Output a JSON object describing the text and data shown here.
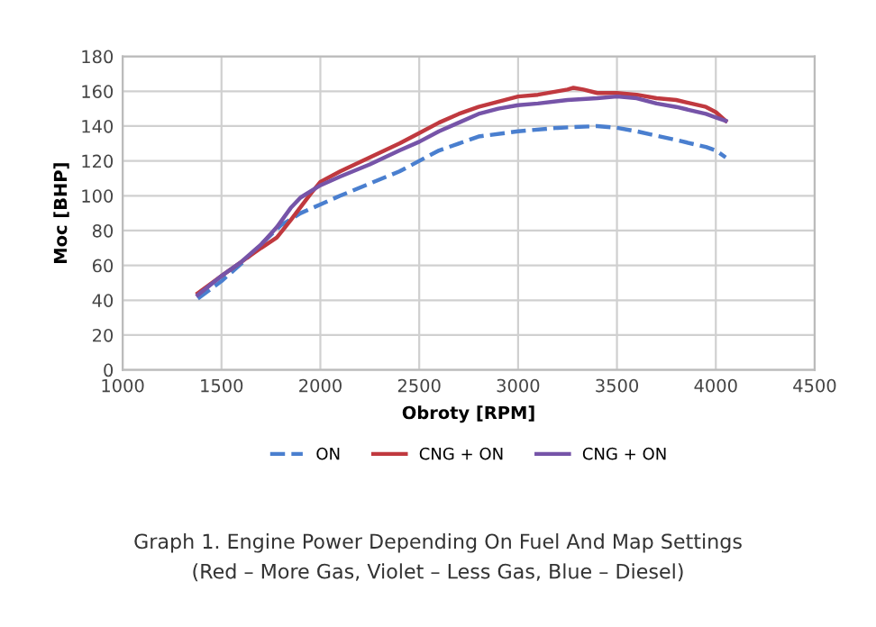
{
  "chart_data": {
    "type": "line",
    "xlabel": "Obroty [RPM]",
    "ylabel": "Moc [BHP]",
    "xlim": [
      1000,
      4500
    ],
    "xticks": [
      1000,
      1500,
      2000,
      2500,
      3000,
      3500,
      4000,
      4500
    ],
    "ylim": [
      0,
      180
    ],
    "yticks": [
      0,
      20,
      40,
      60,
      80,
      100,
      120,
      140,
      160,
      180
    ],
    "grid": true,
    "legend": "bottom",
    "marker": "none",
    "series": [
      {
        "name": "ON",
        "color": "#4a7fcf",
        "line_style": "dashed",
        "x": [
          1380,
          1500,
          1600,
          1700,
          1800,
          1900,
          2000,
          2100,
          2250,
          2400,
          2500,
          2600,
          2700,
          2800,
          3000,
          3200,
          3400,
          3500,
          3600,
          3800,
          3950,
          4000,
          4050
        ],
        "values": [
          41,
          51,
          61,
          72,
          83,
          90,
          95,
          100,
          107,
          114,
          120,
          126,
          130,
          134,
          137,
          139,
          140,
          139,
          137,
          132,
          128,
          126,
          122
        ]
      },
      {
        "name": "CNG + ON",
        "color": "#c0393f",
        "line_style": "solid",
        "x": [
          1380,
          1500,
          1600,
          1700,
          1780,
          1850,
          1950,
          2000,
          2100,
          2250,
          2400,
          2500,
          2600,
          2700,
          2800,
          2900,
          3000,
          3100,
          3250,
          3280,
          3330,
          3400,
          3500,
          3600,
          3700,
          3800,
          3950,
          4000,
          4050
        ],
        "values": [
          44,
          54,
          62,
          70,
          76,
          86,
          101,
          108,
          114,
          122,
          130,
          136,
          142,
          147,
          151,
          154,
          157,
          158,
          161,
          162,
          161,
          159,
          159,
          158,
          156,
          155,
          151,
          148,
          143
        ]
      },
      {
        "name": "CNG + ON",
        "color": "#7654a8",
        "line_style": "solid",
        "x": [
          1380,
          1500,
          1600,
          1700,
          1780,
          1850,
          1900,
          2000,
          2100,
          2250,
          2400,
          2500,
          2600,
          2700,
          2800,
          2900,
          3000,
          3100,
          3250,
          3400,
          3500,
          3600,
          3700,
          3800,
          3950,
          4000,
          4050
        ],
        "values": [
          43,
          54,
          62,
          72,
          82,
          93,
          99,
          106,
          111,
          118,
          126,
          131,
          137,
          142,
          147,
          150,
          152,
          153,
          155,
          156,
          157,
          156,
          153,
          151,
          147,
          145,
          143
        ]
      }
    ],
    "annotations": [
      "Graph 1. Engine Power Depending On Fuel And Map Settings\n(Red – More Gas, Violet – Less Gas, Blue – Diesel)"
    ]
  }
}
